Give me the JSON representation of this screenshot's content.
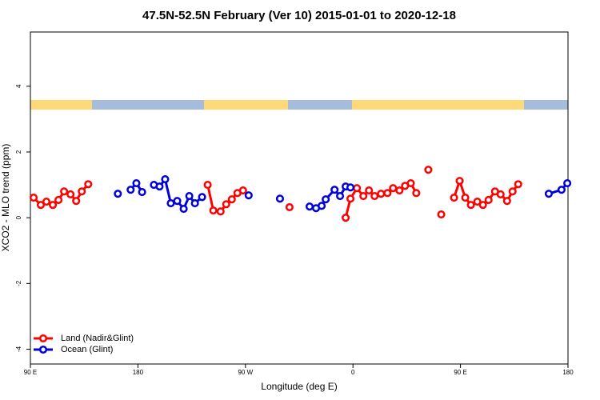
{
  "chart_data": {
    "type": "line",
    "title": "47.5N-52.5N February (Ver 10)   2015-01-01 to 2020-12-18",
    "x_label": "Longitude (deg E)",
    "y_label": "XCO2 - MLO trend (ppm)",
    "xlim": [
      90,
      540
    ],
    "ylim": [
      -4.45,
      5.65
    ],
    "xticks": [
      {
        "value": 90,
        "label": "90 E"
      },
      180,
      {
        "value": 270,
        "label": "90 W"
      },
      {
        "value": 360,
        "label": "0"
      },
      {
        "value": 450,
        "label": "90 E"
      },
      {
        "value": 540,
        "label": "180"
      }
    ],
    "yticks": [
      -4,
      -2,
      0,
      2,
      4
    ],
    "legend": "bottom-left",
    "series": [
      {
        "name": "Land (Nadir&Glint)",
        "color": "#ff0000",
        "x": [
          92.7,
          98.7,
          103.4,
          108.8,
          113.5,
          118.2,
          123.6,
          128.3,
          133,
          138.4,
          null,
          238.4,
          243.1,
          249.2,
          253.9,
          258.6,
          263.3,
          268,
          null,
          306.9,
          null,
          353.9,
          357.9,
          363.3,
          368.7,
          373.4,
          378.1,
          383.5,
          388.9,
          393.6,
          398.9,
          403.6,
          408.4,
          413,
          null,
          423.1,
          null,
          433.9,
          null,
          444.6,
          449.3,
          454,
          458.7,
          464.1,
          468.8,
          473.5,
          478.9,
          483.6,
          489,
          493.6,
          498.3
        ],
        "values": [
          0.61,
          0.39,
          0.49,
          0.39,
          0.54,
          0.8,
          0.71,
          0.51,
          0.8,
          1.02,
          null,
          1.0,
          0.22,
          0.19,
          0.41,
          0.56,
          0.75,
          0.83,
          null,
          0.32,
          null,
          0.0,
          0.58,
          0.9,
          0.66,
          0.83,
          0.66,
          0.73,
          0.75,
          0.9,
          0.83,
          0.97,
          1.05,
          0.75,
          null,
          1.46,
          null,
          0.1,
          null,
          0.61,
          1.12,
          0.61,
          0.39,
          0.49,
          0.39,
          0.54,
          0.8,
          0.71,
          0.51,
          0.8,
          1.02
        ]
      },
      {
        "name": "Ocean (Glint)",
        "color": "#0000dd",
        "x": [
          163.2,
          null,
          173.9,
          178.7,
          183.5,
          null,
          193.4,
          198.1,
          202.8,
          207.5,
          212.9,
          218.3,
          223,
          227.7,
          233.7,
          null,
          272.7,
          null,
          298.9,
          null,
          323.7,
          329.1,
          333.8,
          337.2,
          344.6,
          349.2,
          353.9,
          357.9,
          null,
          523.9,
          534.6,
          539.4
        ],
        "values": [
          0.73,
          null,
          0.85,
          1.05,
          0.78,
          null,
          1.0,
          0.95,
          1.17,
          0.44,
          0.51,
          0.27,
          0.66,
          0.44,
          0.63,
          null,
          0.68,
          null,
          0.58,
          null,
          0.34,
          0.29,
          0.36,
          0.56,
          0.85,
          0.66,
          0.95,
          0.92,
          null,
          0.73,
          0.85,
          1.05
        ]
      }
    ]
  }
}
